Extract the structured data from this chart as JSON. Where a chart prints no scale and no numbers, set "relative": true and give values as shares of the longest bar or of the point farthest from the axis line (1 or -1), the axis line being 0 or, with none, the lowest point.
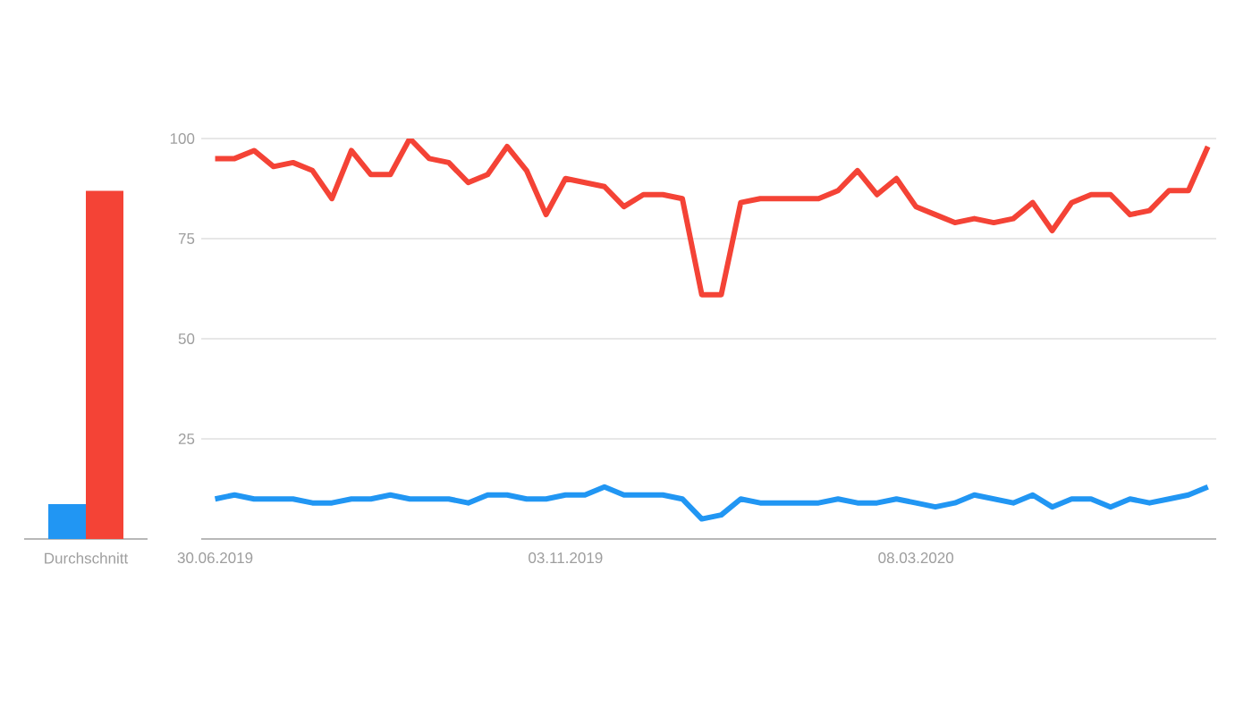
{
  "chart_data": [
    {
      "type": "bar",
      "categories": [
        "Durchschnitt"
      ],
      "series": [
        {
          "color": "#2196f3",
          "values": [
            0.1
          ]
        },
        {
          "color": "#f44336",
          "values": [
            1
          ]
        }
      ],
      "relative": true
    },
    {
      "type": "line",
      "x": [
        "2019-06-30",
        "2019-07-07",
        "2019-07-14",
        "2019-07-21",
        "2019-07-28",
        "2019-08-04",
        "2019-08-11",
        "2019-08-18",
        "2019-08-25",
        "2019-09-01",
        "2019-09-08",
        "2019-09-15",
        "2019-09-22",
        "2019-09-29",
        "2019-10-06",
        "2019-10-13",
        "2019-10-20",
        "2019-10-27",
        "2019-11-03",
        "2019-11-10",
        "2019-11-17",
        "2019-11-24",
        "2019-12-01",
        "2019-12-08",
        "2019-12-15",
        "2019-12-22",
        "2019-12-29",
        "2020-01-05",
        "2020-01-12",
        "2020-01-19",
        "2020-01-26",
        "2020-02-02",
        "2020-02-09",
        "2020-02-16",
        "2020-02-23",
        "2020-03-01",
        "2020-03-08",
        "2020-03-15",
        "2020-03-22",
        "2020-03-29",
        "2020-04-05",
        "2020-04-12",
        "2020-04-19",
        "2020-04-26",
        "2020-05-03",
        "2020-05-10",
        "2020-05-17",
        "2020-05-24",
        "2020-05-31",
        "2020-06-07",
        "2020-06-14",
        "2020-06-21"
      ],
      "series": [
        {
          "color": "#2196f3",
          "values": [
            10,
            11,
            10,
            10,
            10,
            9,
            9,
            10,
            10,
            11,
            10,
            10,
            10,
            9,
            11,
            11,
            10,
            10,
            11,
            11,
            13,
            11,
            11,
            11,
            10,
            5,
            6,
            10,
            9,
            9,
            9,
            9,
            10,
            9,
            9,
            10,
            9,
            8,
            9,
            11,
            10,
            9,
            11,
            8,
            10,
            10,
            8,
            10,
            9,
            10,
            11,
            13
          ]
        },
        {
          "color": "#f44336",
          "values": [
            95,
            95,
            97,
            93,
            94,
            92,
            85,
            97,
            91,
            91,
            100,
            95,
            94,
            89,
            91,
            98,
            92,
            81,
            90,
            89,
            88,
            83,
            86,
            86,
            85,
            61,
            61,
            84,
            85,
            85,
            85,
            85,
            87,
            92,
            86,
            90,
            83,
            81,
            79,
            80,
            79,
            80,
            84,
            77,
            84,
            86,
            86,
            81,
            82,
            87,
            87,
            98
          ]
        }
      ],
      "xlim": [
        "2019-06-25",
        "2020-06-24"
      ],
      "xticks": [
        {
          "value": "2019-06-30",
          "label": "30.06.2019"
        },
        {
          "value": "2019-11-03",
          "label": "03.11.2019"
        },
        {
          "value": "2020-03-08",
          "label": "08.03.2020"
        }
      ],
      "ylim": [
        0,
        100
      ],
      "yticks": [
        25,
        50,
        75,
        100
      ],
      "grid": "y"
    }
  ]
}
